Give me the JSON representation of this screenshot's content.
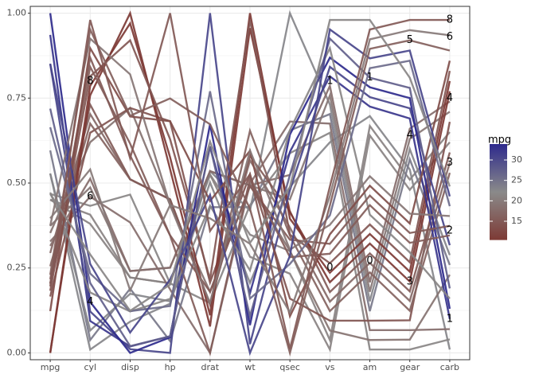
{
  "chart_data": {
    "type": "parallel",
    "categories": [
      "mpg",
      "cyl",
      "disp",
      "hp",
      "drat",
      "wt",
      "qsec",
      "vs",
      "am",
      "gear",
      "carb"
    ],
    "ylim": [
      -0.02,
      1.02
    ],
    "yticks": [
      {
        "value": 0,
        "label": "0.00"
      },
      {
        "value": 0.25,
        "label": "0.25"
      },
      {
        "value": 0.5,
        "label": "0.50"
      },
      {
        "value": 0.75,
        "label": "0.75"
      },
      {
        "value": 1,
        "label": "1.00"
      }
    ],
    "grid": true,
    "colorbar": {
      "title": "mpg",
      "lim": [
        10.4,
        33.9
      ],
      "ticks": [
        15,
        20,
        25,
        30
      ],
      "colors": [
        "#7d3a35",
        "#8a8a8a",
        "#2e2a8c"
      ]
    },
    "level_labels": [
      {
        "axis": "cyl",
        "label": "4",
        "y": 0.15
      },
      {
        "axis": "cyl",
        "label": "6",
        "y": 0.46
      },
      {
        "axis": "cyl",
        "label": "8",
        "y": 0.8
      },
      {
        "axis": "vs",
        "label": "0",
        "y": 0.25
      },
      {
        "axis": "vs",
        "label": "1",
        "y": 0.8
      },
      {
        "axis": "am",
        "label": "0",
        "y": 0.27
      },
      {
        "axis": "am",
        "label": "1",
        "y": 0.81
      },
      {
        "axis": "gear",
        "label": "3",
        "y": 0.21
      },
      {
        "axis": "gear",
        "label": "4",
        "y": 0.64
      },
      {
        "axis": "gear",
        "label": "5",
        "y": 0.92
      },
      {
        "axis": "carb",
        "label": "1",
        "y": 0.1
      },
      {
        "axis": "carb",
        "label": "2",
        "y": 0.36
      },
      {
        "axis": "carb",
        "label": "3",
        "y": 0.56
      },
      {
        "axis": "carb",
        "label": "4",
        "y": 0.75
      },
      {
        "axis": "carb",
        "label": "6",
        "y": 0.93
      },
      {
        "axis": "carb",
        "label": "8",
        "y": 0.98
      }
    ],
    "series": [
      {
        "color_value": 21,
        "values": [
          0.451,
          0.38,
          0.222,
          0.205,
          0.525,
          0.283,
          0.233,
          0.01,
          0.64,
          0.48,
          0.62
        ]
      },
      {
        "color_value": 21,
        "values": [
          0.451,
          0.407,
          0.222,
          0.205,
          0.525,
          0.348,
          0.3,
          0.038,
          0.668,
          0.51,
          0.65
        ]
      },
      {
        "color_value": 22.8,
        "values": [
          0.528,
          0.01,
          0.092,
          0.145,
          0.502,
          0.206,
          0.489,
          0.62,
          0.697,
          0.54,
          0.01
        ]
      },
      {
        "color_value": 21.4,
        "values": [
          0.468,
          0.433,
          0.466,
          0.205,
          0.147,
          0.435,
          0.588,
          0.648,
          0.01,
          0.01,
          0.04
        ]
      },
      {
        "color_value": 18.7,
        "values": [
          0.353,
          0.62,
          0.721,
          0.435,
          0.18,
          0.493,
          0.3,
          0.066,
          0.038,
          0.039,
          0.23
        ]
      },
      {
        "color_value": 18.1,
        "values": [
          0.328,
          0.46,
          0.384,
          0.187,
          0,
          0.498,
          0.681,
          0.675,
          0.067,
          0.067,
          0.07
        ]
      },
      {
        "color_value": 14.3,
        "values": [
          0.166,
          0.648,
          0.721,
          0.682,
          0.207,
          0.526,
          0.16,
          0.095,
          0.095,
          0.096,
          0.68
        ]
      },
      {
        "color_value": 24.4,
        "values": [
          0.596,
          0.038,
          0.189,
          0.035,
          0.429,
          0.429,
          0.655,
          0.703,
          0.123,
          0.57,
          0.259
        ]
      },
      {
        "color_value": 22.8,
        "values": [
          0.528,
          0.066,
          0.174,
          0.152,
          0.535,
          0.419,
          1,
          0.731,
          0.152,
          0.6,
          0.288
        ]
      },
      {
        "color_value": 19.2,
        "values": [
          0.374,
          0.487,
          0.241,
          0.251,
          0.535,
          0.493,
          0.452,
          0.758,
          0.18,
          0.63,
          0.71
        ]
      },
      {
        "color_value": 17.8,
        "values": [
          0.315,
          0.513,
          0.241,
          0.251,
          0.535,
          0.493,
          0.524,
          0.786,
          0.208,
          0.66,
          0.74
        ]
      },
      {
        "color_value": 16.4,
        "values": [
          0.255,
          0.675,
          0.511,
          0.452,
          0.143,
          0.654,
          0.345,
          0.123,
          0.237,
          0.124,
          0.53
        ]
      },
      {
        "color_value": 17.3,
        "values": [
          0.294,
          0.703,
          0.511,
          0.452,
          0.143,
          0.567,
          0.369,
          0.151,
          0.265,
          0.153,
          0.56
        ]
      },
      {
        "color_value": 15.2,
        "values": [
          0.204,
          0.731,
          0.511,
          0.452,
          0.143,
          0.58,
          0.417,
          0.179,
          0.293,
          0.181,
          0.59
        ]
      },
      {
        "color_value": 10.4,
        "values": [
          0,
          0.758,
          1,
          0.541,
          0.078,
          0.956,
          0.414,
          0.208,
          0.322,
          0.21,
          0.77
        ]
      },
      {
        "color_value": 10.4,
        "values": [
          0,
          0.786,
          0.97,
          0.576,
          0.111,
          1,
          0.395,
          0.236,
          0.35,
          0.239,
          0.8
        ]
      },
      {
        "color_value": 14.7,
        "values": [
          0.183,
          0.814,
          0.92,
          0.629,
          0.217,
          0.98,
          0.348,
          0.264,
          0.378,
          0.267,
          0.83
        ]
      },
      {
        "color_value": 32.4,
        "values": [
          0.936,
          0.094,
          0.019,
          0.049,
          0.608,
          0.176,
          0.592,
          0.814,
          0.725,
          0.69,
          0.1
        ]
      },
      {
        "color_value": 30.4,
        "values": [
          0.851,
          0.122,
          0.011,
          0,
          1,
          0.026,
          0.479,
          0.842,
          0.753,
          0.72,
          0.317
        ]
      },
      {
        "color_value": 33.9,
        "values": [
          1,
          0.15,
          0,
          0.046,
          0.673,
          0.082,
          0.643,
          0.869,
          0.782,
          0.75,
          0.13
        ]
      },
      {
        "color_value": 21.5,
        "values": [
          0.472,
          0.178,
          0.122,
          0.159,
          0.433,
          0.243,
          0.656,
          0.897,
          0.407,
          0.296,
          0.16
        ]
      },
      {
        "color_value": 15.5,
        "values": [
          0.217,
          0.842,
          0.616,
          0.346,
          0,
          0.513,
          0.282,
          0.292,
          0.435,
          0.324,
          0.346
        ]
      },
      {
        "color_value": 15.2,
        "values": [
          0.204,
          0.869,
          0.581,
          0.346,
          0.18,
          0.491,
          0.333,
          0.321,
          0.463,
          0.353,
          0.374
        ]
      },
      {
        "color_value": 13.3,
        "values": [
          0.123,
          0.897,
          0.696,
          0.682,
          0.447,
          0.595,
          0.108,
          0.349,
          0.492,
          0.381,
          0.86
        ]
      },
      {
        "color_value": 19.2,
        "values": [
          0.374,
          0.925,
          0.82,
          0.435,
          0.147,
          0.596,
          0.304,
          0.377,
          0.52,
          0.41,
          0.403
        ]
      },
      {
        "color_value": 27.3,
        "values": [
          0.719,
          0.206,
          0.02,
          0.049,
          0.608,
          0.108,
          0.524,
          0.925,
          0.81,
          0.78,
          0.19
        ]
      },
      {
        "color_value": 26,
        "values": [
          0.664,
          0.234,
          0.123,
          0.138,
          0.77,
          0.16,
          0.262,
          0.405,
          0.838,
          0.86,
          0.432
        ]
      },
      {
        "color_value": 30.4,
        "values": [
          0.851,
          0.262,
          0.06,
          0.216,
          0.465,
          0,
          0.286,
          0.952,
          0.867,
          0.89,
          0.461
        ]
      },
      {
        "color_value": 15.8,
        "values": [
          0.23,
          0.952,
          0.698,
          0.749,
          0.673,
          0.424,
          0,
          0.434,
          0.895,
          0.92,
          0.89
        ]
      },
      {
        "color_value": 19.7,
        "values": [
          0.396,
          0.54,
          0.184,
          0.435,
          0.396,
          0.321,
          0.119,
          0.462,
          0.923,
          0.95,
          0.935
        ]
      },
      {
        "color_value": 15,
        "values": [
          0.196,
          0.98,
          0.573,
          1,
          0.359,
          0.526,
          0.012,
          0.49,
          0.952,
          0.98,
          0.98
        ]
      },
      {
        "color_value": 21.4,
        "values": [
          0.468,
          0.29,
          0.124,
          0.201,
          0.622,
          0.324,
          0.488,
          0.98,
          0.98,
          0.81,
          0.49
        ]
      }
    ]
  }
}
